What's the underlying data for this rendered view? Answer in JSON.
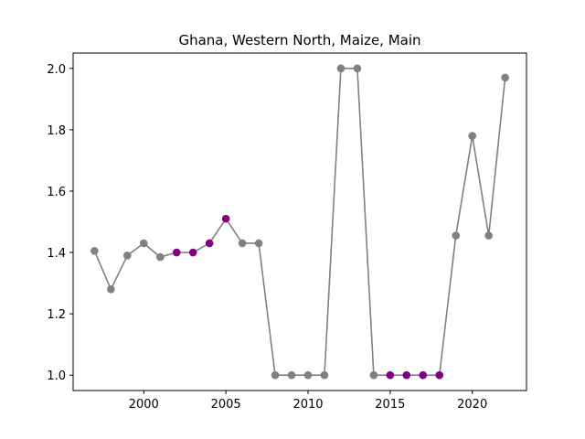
{
  "chart_data": {
    "type": "line",
    "title": "Ghana, Western North, Maize, Main",
    "xlabel": "",
    "ylabel": "",
    "xlim": [
      1995.7,
      2023.3
    ],
    "ylim": [
      0.95,
      2.05
    ],
    "x_ticks": [
      2000,
      2005,
      2010,
      2015,
      2020
    ],
    "y_ticks": [
      1.0,
      1.2,
      1.4,
      1.6,
      1.8,
      2.0
    ],
    "grid": false,
    "legend": "none",
    "line_color": "#808080",
    "marker_color_default": "#808080",
    "marker_color_highlight": "#800080",
    "series": [
      {
        "x": [
          1997,
          1998,
          1999,
          2000,
          2001,
          2002,
          2003,
          2004,
          2005,
          2006,
          2007,
          2008,
          2009,
          2010,
          2011,
          2012,
          2013,
          2014,
          2015,
          2016,
          2017,
          2018,
          2019,
          2020,
          2021,
          2022
        ],
        "y": [
          1.405,
          1.28,
          1.39,
          1.43,
          1.385,
          1.4,
          1.4,
          1.43,
          1.51,
          1.43,
          1.43,
          1.0,
          1.0,
          1.0,
          1.0,
          2.0,
          2.0,
          1.0,
          1.0,
          1.0,
          1.0,
          1.0,
          1.455,
          1.78,
          1.455,
          1.97
        ],
        "highlight": [
          false,
          false,
          false,
          false,
          false,
          true,
          true,
          true,
          true,
          false,
          false,
          false,
          false,
          false,
          false,
          false,
          false,
          false,
          true,
          true,
          true,
          true,
          false,
          false,
          false,
          false
        ]
      }
    ]
  }
}
